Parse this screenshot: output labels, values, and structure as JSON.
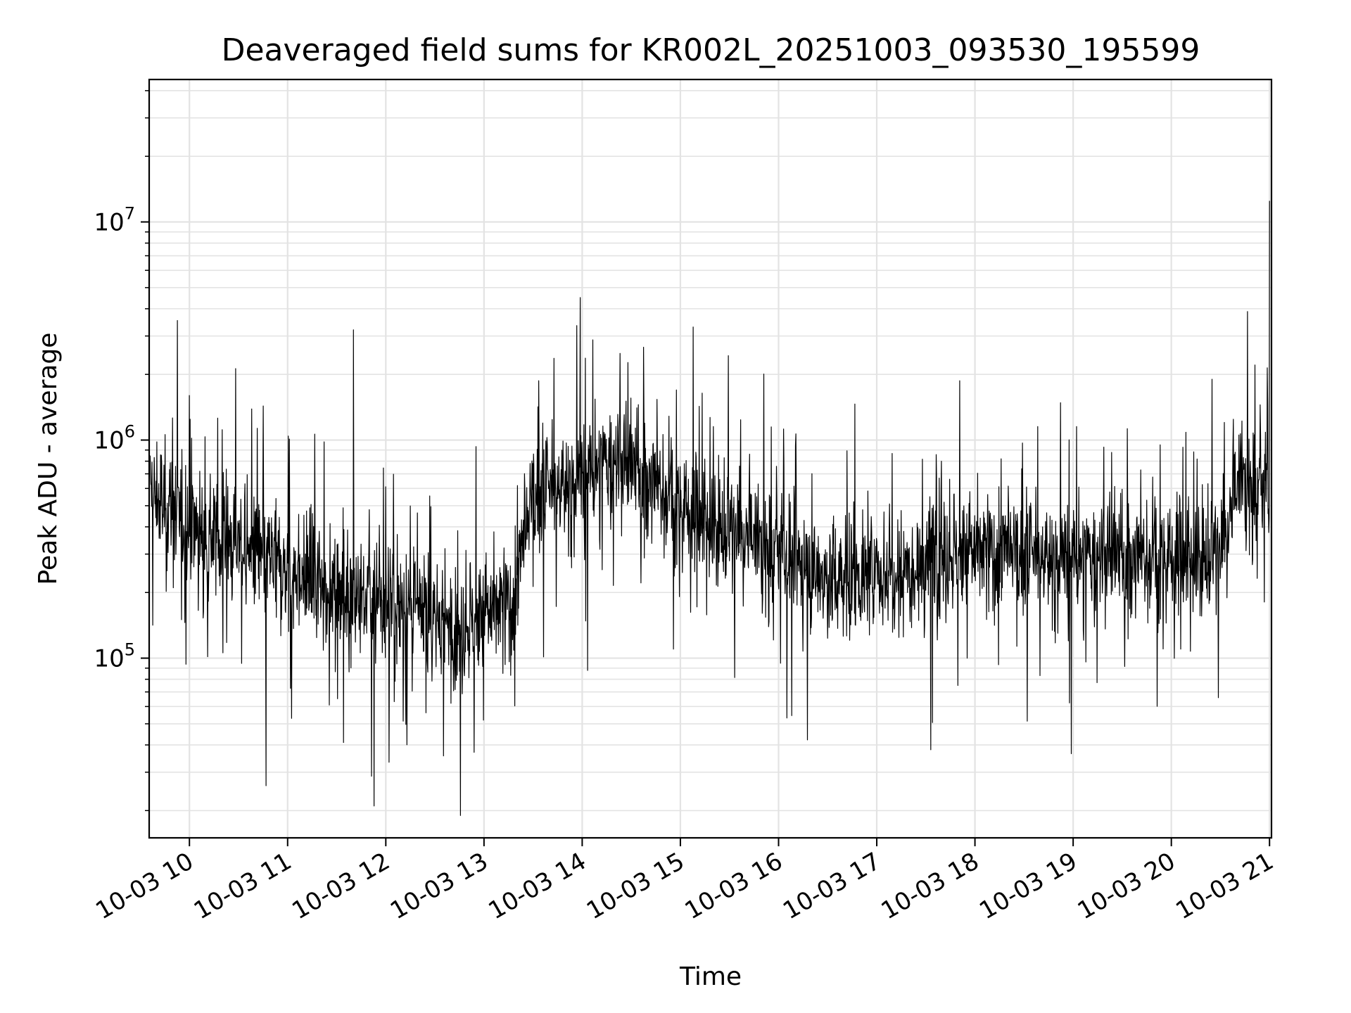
{
  "chart_data": {
    "type": "line",
    "title": "Deaveraged field sums for KR002L_20251003_093530_195599",
    "xlabel": "Time",
    "ylabel": "Peak ADU - average",
    "yscale": "log",
    "ylim": [
      15000,
      45000000
    ],
    "xlim_hours": [
      9.59,
      21.02
    ],
    "grid": true,
    "line_color": "#000000",
    "grid_color": "#e3e3e3",
    "x_ticks": [
      {
        "label": "10-03 10",
        "hour": 10
      },
      {
        "label": "10-03 11",
        "hour": 11
      },
      {
        "label": "10-03 12",
        "hour": 12
      },
      {
        "label": "10-03 13",
        "hour": 13
      },
      {
        "label": "10-03 14",
        "hour": 14
      },
      {
        "label": "10-03 15",
        "hour": 15
      },
      {
        "label": "10-03 16",
        "hour": 16
      },
      {
        "label": "10-03 17",
        "hour": 17
      },
      {
        "label": "10-03 18",
        "hour": 18
      },
      {
        "label": "10-03 19",
        "hour": 19
      },
      {
        "label": "10-03 20",
        "hour": 20
      },
      {
        "label": "10-03 21",
        "hour": 21
      }
    ],
    "y_ticks": [
      {
        "base": "10",
        "exp": "5",
        "value": 100000
      },
      {
        "base": "10",
        "exp": "6",
        "value": 1000000
      },
      {
        "base": "10",
        "exp": "7",
        "value": 10000000
      }
    ],
    "series_envelope": {
      "name": "Peak ADU - average",
      "hours": [
        9.6,
        10.0,
        10.5,
        11.0,
        11.5,
        12.0,
        12.5,
        12.8,
        13.0,
        13.3,
        13.5,
        14.0,
        14.3,
        14.6,
        15.0,
        15.5,
        16.0,
        16.5,
        17.0,
        17.5,
        18.0,
        18.5,
        19.0,
        19.5,
        20.0,
        20.5,
        20.7,
        21.0
      ],
      "median": [
        550000,
        420000,
        330000,
        250000,
        210000,
        180000,
        150000,
        140000,
        160000,
        180000,
        550000,
        650000,
        800000,
        700000,
        500000,
        380000,
        300000,
        230000,
        240000,
        290000,
        310000,
        290000,
        280000,
        290000,
        290000,
        300000,
        650000,
        550000
      ]
    },
    "notable_peaks": [
      {
        "hour": 11.67,
        "value": 3200000
      },
      {
        "hour": 13.98,
        "value": 4500000
      },
      {
        "hour": 15.13,
        "value": 3300000
      },
      {
        "hour": 21.0,
        "value": 12500000
      }
    ],
    "notable_troughs": [
      {
        "hour": 10.78,
        "value": 26000
      },
      {
        "hour": 11.88,
        "value": 21000
      },
      {
        "hour": 12.76,
        "value": 19000
      },
      {
        "hour": 17.55,
        "value": 38000
      }
    ]
  }
}
